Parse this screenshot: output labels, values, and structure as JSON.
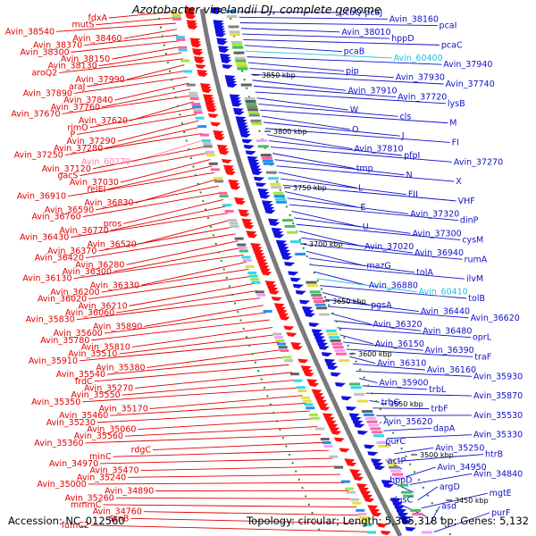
{
  "title": "Azotobacter vinelandii DJ, complete genome",
  "footer": {
    "accession": "Accession: NC_012560",
    "topology": "Topology: circular; Length: 5,365,318 bp; Genes: 5,132"
  },
  "colors": {
    "left_labels": "#e00000",
    "right_labels": "#1010c8",
    "highlight_right": "#20c0e0",
    "highlight_left": "#ff80b0",
    "backbone": "#808080"
  },
  "kbp_ticks": [
    "3850 kbp",
    "3800 kbp",
    "3750 kbp",
    "3700 kbp",
    "3650 kbp",
    "3600 kbp",
    "3550 kbp",
    "3500 kbp",
    "3450 kbp"
  ],
  "left_genes": [
    "fdxA",
    "mutS",
    "Avin_38540",
    "Avin_38460",
    "Avin_38370",
    "Avin_38300",
    "Avin_38150",
    "Avin_38130",
    "aroQ2",
    "Avin_37990",
    "araJ",
    "Avin_37890",
    "Avin_37840",
    "Avin_37760",
    "Avin_37670",
    "Avin_37620",
    "rimO",
    "P",
    "Avin_37290",
    "Avin_37280",
    "Avin_37250",
    "Avin_60270",
    "Avin_37120",
    "gacS",
    "Avin_37030",
    "relEI",
    "Avin_36910",
    "Avin_36830",
    "Avin_36590",
    "Avin_36760",
    "pros",
    "Avin_36770",
    "Avin_36430",
    "Avin_36520",
    "Avin_36370",
    "Avin_36420",
    "Avin_36280",
    "Avin_36300",
    "Avin_36130",
    "Avin_36330",
    "Avin_36200",
    "Avin_36020",
    "Avin_36210",
    "Avin_36060",
    "Avin_35830",
    "Avin_35890",
    "Avin_35600",
    "Avin_35780",
    "Avin_35810",
    "Avin_35510",
    "Avin_35910",
    "Avin_35380",
    "Avin_35540",
    "frdC",
    "Avin_35270",
    "Avin_35550",
    "Avin_35350",
    "Avin_35170",
    "Avin_35460",
    "Avin_35230",
    "Avin_35060",
    "Avin_35560",
    "Avin_35360",
    "rdgC",
    "minC",
    "Avin_34970",
    "Avin_35470",
    "Avin_35240",
    "Avin_35000",
    "Avin_34890",
    "Avin_35260",
    "mmmC",
    "Avin_34760",
    "asnB",
    "fumC2"
  ],
  "right_genes": [
    "pcaQ-pcaJ",
    "Avin_38160",
    "pcaI",
    "Avin_38010",
    "hppD",
    "pcaC",
    "pcaB",
    "Avin_60400",
    "Avin_37940",
    "pip",
    "Avin_37930",
    "Avin_37740",
    "Avin_37910",
    "Avin_37720",
    "lysB",
    "W",
    "cls",
    "M",
    "O",
    "J",
    "FI",
    "Avin_37810",
    "pfpI",
    "Avin_37270",
    "tmp",
    "N",
    "X",
    "L",
    "FII",
    "VHF",
    "E",
    "Avin_37320",
    "dinP",
    "U",
    "Avin_37300",
    "cysM",
    "Avin_37020",
    "Avin_36940",
    "rumA",
    "mazG",
    "tolA",
    "ilvM",
    "Avin_36880",
    "Avin_60410",
    "tolB",
    "pgsA",
    "Avin_36440",
    "Avin_36620",
    "Avin_36320",
    "Avin_36480",
    "oprL",
    "Avin_36150",
    "Avin_36390",
    "traF",
    "Avin_36310",
    "Avin_36160",
    "Avin_35930",
    "Avin_35900",
    "trbL",
    "Avin_35870",
    "trbG",
    "trbF",
    "Avin_35530",
    "Avin_35620",
    "dapA",
    "Avin_35330",
    "purC",
    "Avin_35250",
    "htrB",
    "actP",
    "Avin_34950",
    "Avin_34840",
    "hppD",
    "argD",
    "mgtE",
    "dusC",
    "asd",
    "purF"
  ]
}
